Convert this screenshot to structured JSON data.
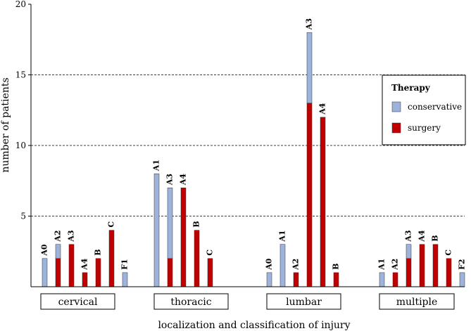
{
  "chart_data": {
    "type": "bar",
    "stacked": true,
    "xlabel": "localization and classification of injury",
    "ylabel": "number of patients",
    "ylim": [
      0,
      20
    ],
    "yticks": [
      5,
      10,
      15,
      20
    ],
    "grid_y": [
      5,
      10,
      15
    ],
    "legend": {
      "title": "Therapy",
      "placement": "right",
      "entries": [
        {
          "name": "conservative",
          "color": "#9db3dc"
        },
        {
          "name": "surgery",
          "color": "#c00000"
        }
      ]
    },
    "series": [
      {
        "name": "conservative",
        "color": "#9db3dc"
      },
      {
        "name": "surgery",
        "color": "#c00000"
      }
    ],
    "groups": [
      {
        "name": "cervical",
        "bars": [
          {
            "label": "A0",
            "conservative": 2,
            "surgery": 0
          },
          {
            "label": "A2",
            "conservative": 1,
            "surgery": 2
          },
          {
            "label": "A3",
            "conservative": 0,
            "surgery": 3
          },
          {
            "label": "A4",
            "conservative": 0,
            "surgery": 1
          },
          {
            "label": "B",
            "conservative": 0,
            "surgery": 2
          },
          {
            "label": "C",
            "conservative": 0,
            "surgery": 4
          },
          {
            "label": "F1",
            "conservative": 1,
            "surgery": 0
          }
        ]
      },
      {
        "name": "thoracic",
        "bars": [
          {
            "label": "A1",
            "conservative": 8,
            "surgery": 0
          },
          {
            "label": "A3",
            "conservative": 5,
            "surgery": 2
          },
          {
            "label": "A4",
            "conservative": 0,
            "surgery": 7
          },
          {
            "label": "B",
            "conservative": 0,
            "surgery": 4
          },
          {
            "label": "C",
            "conservative": 0,
            "surgery": 2
          }
        ]
      },
      {
        "name": "lumbar",
        "bars": [
          {
            "label": "A0",
            "conservative": 1,
            "surgery": 0
          },
          {
            "label": "A1",
            "conservative": 3,
            "surgery": 0
          },
          {
            "label": "A2",
            "conservative": 0,
            "surgery": 1
          },
          {
            "label": "A3",
            "conservative": 5,
            "surgery": 13
          },
          {
            "label": "A4",
            "conservative": 0,
            "surgery": 12
          },
          {
            "label": "B",
            "conservative": 0,
            "surgery": 1
          }
        ]
      },
      {
        "name": "multiple",
        "bars": [
          {
            "label": "A1",
            "conservative": 1,
            "surgery": 0
          },
          {
            "label": "A2",
            "conservative": 0,
            "surgery": 1
          },
          {
            "label": "A3",
            "conservative": 1,
            "surgery": 2
          },
          {
            "label": "A4",
            "conservative": 0,
            "surgery": 3
          },
          {
            "label": "B",
            "conservative": 0,
            "surgery": 3
          },
          {
            "label": "C",
            "conservative": 0,
            "surgery": 2
          },
          {
            "label": "F2",
            "conservative": 1,
            "surgery": 0
          }
        ]
      }
    ]
  }
}
